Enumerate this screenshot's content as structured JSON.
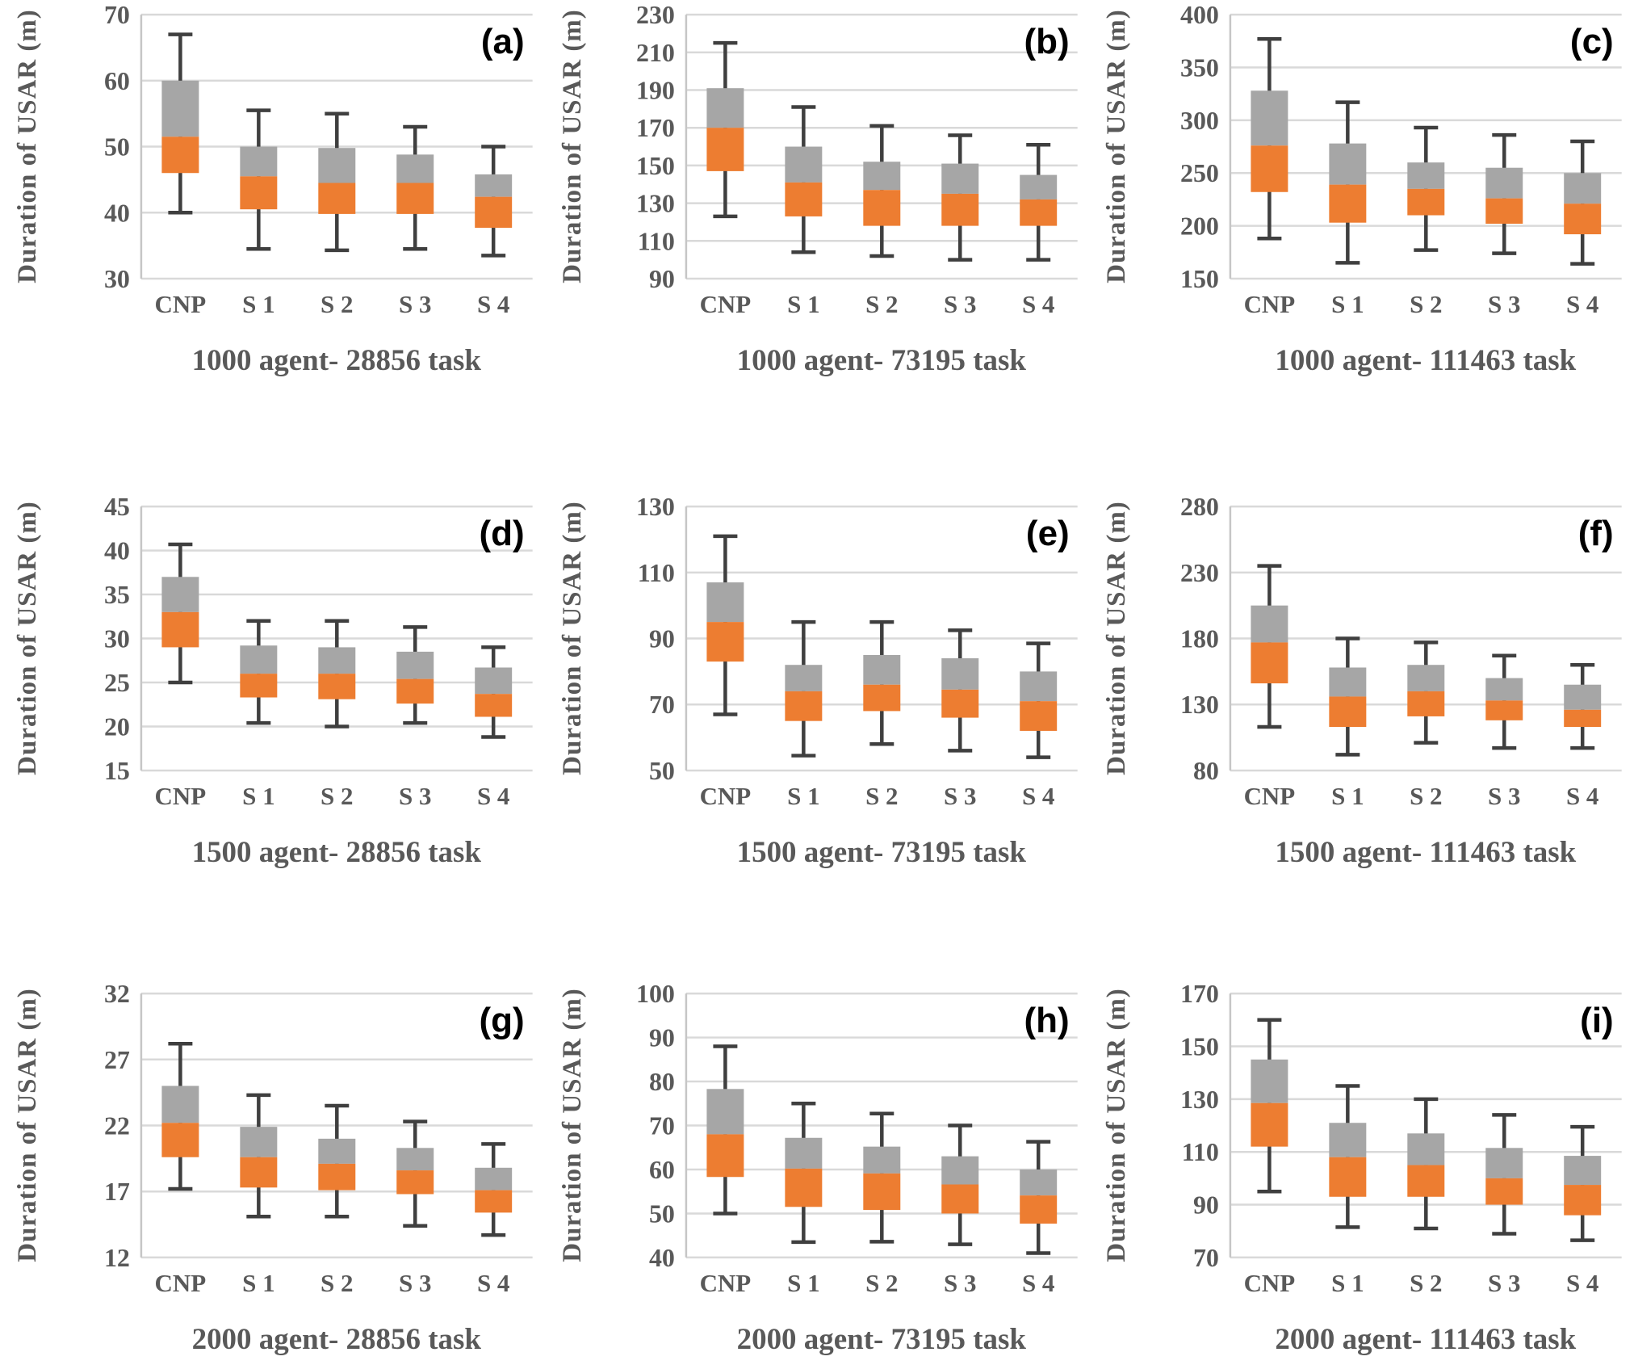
{
  "colors": {
    "box_upper": "#A6A6A6",
    "box_lower": "#ED7D31",
    "whisker": "#3F3F3F",
    "gridline": "#D9D9D9",
    "axis_line": "#C6C6C6",
    "text": "#595959",
    "panel_label": "#000000",
    "background": "#FFFFFF"
  },
  "chart_data": [
    {
      "type": "box",
      "panel_label": "(a)",
      "title": "1000 agent- 28856 task",
      "ylabel": "Duration of USAR (m)",
      "ylim": [
        30,
        70
      ],
      "yticks": [
        30,
        40,
        50,
        60,
        70
      ],
      "categories": [
        "CNP",
        "S 1",
        "S 2",
        "S 3",
        "S 4"
      ],
      "grid": true,
      "legend": "none",
      "boxes": [
        {
          "category": "CNP",
          "whisker_low": 40,
          "q1": 46,
          "median": 51.5,
          "q3": 60,
          "whisker_high": 67
        },
        {
          "category": "S 1",
          "whisker_low": 34.5,
          "q1": 40.5,
          "median": 45.5,
          "q3": 50,
          "whisker_high": 55.5
        },
        {
          "category": "S 2",
          "whisker_low": 34.3,
          "q1": 39.8,
          "median": 44.5,
          "q3": 49.8,
          "whisker_high": 55
        },
        {
          "category": "S 3",
          "whisker_low": 34.5,
          "q1": 39.8,
          "median": 44.5,
          "q3": 48.8,
          "whisker_high": 53
        },
        {
          "category": "S 4",
          "whisker_low": 33.5,
          "q1": 37.7,
          "median": 42.4,
          "q3": 45.8,
          "whisker_high": 50
        }
      ]
    },
    {
      "type": "box",
      "panel_label": "(b)",
      "title": "1000 agent- 73195 task",
      "ylabel": "Duration of USAR (m)",
      "ylim": [
        90,
        230
      ],
      "yticks": [
        90,
        110,
        130,
        150,
        170,
        190,
        210,
        230
      ],
      "categories": [
        "CNP",
        "S 1",
        "S 2",
        "S 3",
        "S 4"
      ],
      "grid": true,
      "legend": "none",
      "boxes": [
        {
          "category": "CNP",
          "whisker_low": 123,
          "q1": 147,
          "median": 170,
          "q3": 191,
          "whisker_high": 215
        },
        {
          "category": "S 1",
          "whisker_low": 104,
          "q1": 123,
          "median": 141,
          "q3": 160,
          "whisker_high": 181
        },
        {
          "category": "S 2",
          "whisker_low": 102,
          "q1": 118,
          "median": 137,
          "q3": 152,
          "whisker_high": 171
        },
        {
          "category": "S 3",
          "whisker_low": 100,
          "q1": 118,
          "median": 135,
          "q3": 151,
          "whisker_high": 166
        },
        {
          "category": "S 4",
          "whisker_low": 100,
          "q1": 118,
          "median": 132,
          "q3": 145,
          "whisker_high": 161
        }
      ]
    },
    {
      "type": "box",
      "panel_label": "(c)",
      "title": "1000 agent- 111463 task",
      "ylabel": "Duration of USAR (m)",
      "ylim": [
        150,
        400
      ],
      "yticks": [
        150,
        200,
        250,
        300,
        350,
        400
      ],
      "categories": [
        "CNP",
        "S 1",
        "S 2",
        "S 3",
        "S 4"
      ],
      "grid": true,
      "legend": "none",
      "boxes": [
        {
          "category": "CNP",
          "whisker_low": 188,
          "q1": 232,
          "median": 276,
          "q3": 328,
          "whisker_high": 377
        },
        {
          "category": "S 1",
          "whisker_low": 165,
          "q1": 203,
          "median": 239,
          "q3": 278,
          "whisker_high": 317
        },
        {
          "category": "S 2",
          "whisker_low": 177,
          "q1": 210,
          "median": 235,
          "q3": 260,
          "whisker_high": 293
        },
        {
          "category": "S 3",
          "whisker_low": 174,
          "q1": 202,
          "median": 226,
          "q3": 255,
          "whisker_high": 286
        },
        {
          "category": "S 4",
          "whisker_low": 164,
          "q1": 192,
          "median": 221,
          "q3": 250,
          "whisker_high": 280
        }
      ]
    },
    {
      "type": "box",
      "panel_label": "(d)",
      "title": "1500 agent- 28856 task",
      "ylabel": "Duration of USAR (m)",
      "ylim": [
        15,
        45
      ],
      "yticks": [
        15,
        20,
        25,
        30,
        35,
        40,
        45
      ],
      "categories": [
        "CNP",
        "S 1",
        "S 2",
        "S 3",
        "S 4"
      ],
      "grid": true,
      "legend": "none",
      "boxes": [
        {
          "category": "CNP",
          "whisker_low": 25,
          "q1": 29,
          "median": 33,
          "q3": 37,
          "whisker_high": 40.7
        },
        {
          "category": "S 1",
          "whisker_low": 20.4,
          "q1": 23.3,
          "median": 26,
          "q3": 29.2,
          "whisker_high": 32
        },
        {
          "category": "S 2",
          "whisker_low": 20,
          "q1": 23.1,
          "median": 26,
          "q3": 29,
          "whisker_high": 32
        },
        {
          "category": "S 3",
          "whisker_low": 20.4,
          "q1": 22.6,
          "median": 25.4,
          "q3": 28.5,
          "whisker_high": 31.3
        },
        {
          "category": "S 4",
          "whisker_low": 18.8,
          "q1": 21.1,
          "median": 23.7,
          "q3": 26.7,
          "whisker_high": 29
        }
      ]
    },
    {
      "type": "box",
      "panel_label": "(e)",
      "title": "1500 agent- 73195 task",
      "ylabel": "Duration of USAR (m)",
      "ylim": [
        50,
        130
      ],
      "yticks": [
        50,
        70,
        90,
        110,
        130
      ],
      "categories": [
        "CNP",
        "S 1",
        "S 2",
        "S 3",
        "S 4"
      ],
      "grid": true,
      "legend": "none",
      "boxes": [
        {
          "category": "CNP",
          "whisker_low": 67,
          "q1": 83,
          "median": 95,
          "q3": 107,
          "whisker_high": 121
        },
        {
          "category": "S 1",
          "whisker_low": 54.5,
          "q1": 65,
          "median": 74,
          "q3": 82,
          "whisker_high": 95
        },
        {
          "category": "S 2",
          "whisker_low": 58,
          "q1": 68,
          "median": 76,
          "q3": 85,
          "whisker_high": 95
        },
        {
          "category": "S 3",
          "whisker_low": 56,
          "q1": 66,
          "median": 74.5,
          "q3": 84,
          "whisker_high": 92.5
        },
        {
          "category": "S 4",
          "whisker_low": 54,
          "q1": 62,
          "median": 71,
          "q3": 80,
          "whisker_high": 88.5
        }
      ]
    },
    {
      "type": "box",
      "panel_label": "(f)",
      "title": "1500 agent- 111463 task",
      "ylabel": "Duration of USAR (m)",
      "ylim": [
        80,
        280
      ],
      "yticks": [
        80,
        130,
        180,
        230,
        280
      ],
      "categories": [
        "CNP",
        "S 1",
        "S 2",
        "S 3",
        "S 4"
      ],
      "grid": true,
      "legend": "none",
      "boxes": [
        {
          "category": "CNP",
          "whisker_low": 113,
          "q1": 146,
          "median": 177,
          "q3": 205,
          "whisker_high": 235
        },
        {
          "category": "S 1",
          "whisker_low": 92,
          "q1": 113,
          "median": 136,
          "q3": 158,
          "whisker_high": 180
        },
        {
          "category": "S 2",
          "whisker_low": 101,
          "q1": 121,
          "median": 140,
          "q3": 160,
          "whisker_high": 177
        },
        {
          "category": "S 3",
          "whisker_low": 97,
          "q1": 118,
          "median": 133,
          "q3": 150,
          "whisker_high": 167
        },
        {
          "category": "S 4",
          "whisker_low": 97,
          "q1": 113,
          "median": 126,
          "q3": 145,
          "whisker_high": 160
        }
      ]
    },
    {
      "type": "box",
      "panel_label": "(g)",
      "title": "2000 agent- 28856 task",
      "ylabel": "Duration of USAR (m)",
      "ylim": [
        12,
        32
      ],
      "yticks": [
        12,
        17,
        22,
        27,
        32
      ],
      "categories": [
        "CNP",
        "S 1",
        "S 2",
        "S 3",
        "S 4"
      ],
      "grid": true,
      "legend": "none",
      "boxes": [
        {
          "category": "CNP",
          "whisker_low": 17.2,
          "q1": 19.6,
          "median": 22.2,
          "q3": 25,
          "whisker_high": 28.2
        },
        {
          "category": "S 1",
          "whisker_low": 15.1,
          "q1": 17.3,
          "median": 19.6,
          "q3": 21.9,
          "whisker_high": 24.3
        },
        {
          "category": "S 2",
          "whisker_low": 15.1,
          "q1": 17.1,
          "median": 19.1,
          "q3": 21,
          "whisker_high": 23.5
        },
        {
          "category": "S 3",
          "whisker_low": 14.4,
          "q1": 16.8,
          "median": 18.6,
          "q3": 20.3,
          "whisker_high": 22.3
        },
        {
          "category": "S 4",
          "whisker_low": 13.7,
          "q1": 15.4,
          "median": 17.1,
          "q3": 18.8,
          "whisker_high": 20.6
        }
      ]
    },
    {
      "type": "box",
      "panel_label": "(h)",
      "title": "2000 agent- 73195 task",
      "ylabel": "Duration of USAR (m)",
      "ylim": [
        40,
        100
      ],
      "yticks": [
        40,
        50,
        60,
        70,
        80,
        90,
        100
      ],
      "categories": [
        "CNP",
        "S 1",
        "S 2",
        "S 3",
        "S 4"
      ],
      "grid": true,
      "legend": "none",
      "boxes": [
        {
          "category": "CNP",
          "whisker_low": 50,
          "q1": 58.3,
          "median": 68,
          "q3": 78.3,
          "whisker_high": 88
        },
        {
          "category": "S 1",
          "whisker_low": 43.5,
          "q1": 51.5,
          "median": 60.2,
          "q3": 67.2,
          "whisker_high": 75
        },
        {
          "category": "S 2",
          "whisker_low": 43.6,
          "q1": 50.8,
          "median": 59.1,
          "q3": 65.2,
          "whisker_high": 72.7
        },
        {
          "category": "S 3",
          "whisker_low": 43,
          "q1": 50,
          "median": 56.6,
          "q3": 63,
          "whisker_high": 70
        },
        {
          "category": "S 4",
          "whisker_low": 41,
          "q1": 47.7,
          "median": 54.1,
          "q3": 60,
          "whisker_high": 66.3
        }
      ]
    },
    {
      "type": "box",
      "panel_label": "(i)",
      "title": "2000 agent- 111463 task",
      "ylabel": "Duration of USAR (m)",
      "ylim": [
        70,
        170
      ],
      "yticks": [
        70,
        90,
        110,
        130,
        150,
        170
      ],
      "categories": [
        "CNP",
        "S 1",
        "S 2",
        "S 3",
        "S 4"
      ],
      "grid": true,
      "legend": "none",
      "boxes": [
        {
          "category": "CNP",
          "whisker_low": 95,
          "q1": 112,
          "median": 128.5,
          "q3": 145,
          "whisker_high": 160
        },
        {
          "category": "S 1",
          "whisker_low": 81.5,
          "q1": 93,
          "median": 108,
          "q3": 121,
          "whisker_high": 135
        },
        {
          "category": "S 2",
          "whisker_low": 81,
          "q1": 93,
          "median": 105,
          "q3": 117,
          "whisker_high": 130
        },
        {
          "category": "S 3",
          "whisker_low": 79,
          "q1": 90,
          "median": 100,
          "q3": 111.5,
          "whisker_high": 124
        },
        {
          "category": "S 4",
          "whisker_low": 76.5,
          "q1": 86,
          "median": 97.5,
          "q3": 108.5,
          "whisker_high": 119.5
        }
      ]
    }
  ]
}
